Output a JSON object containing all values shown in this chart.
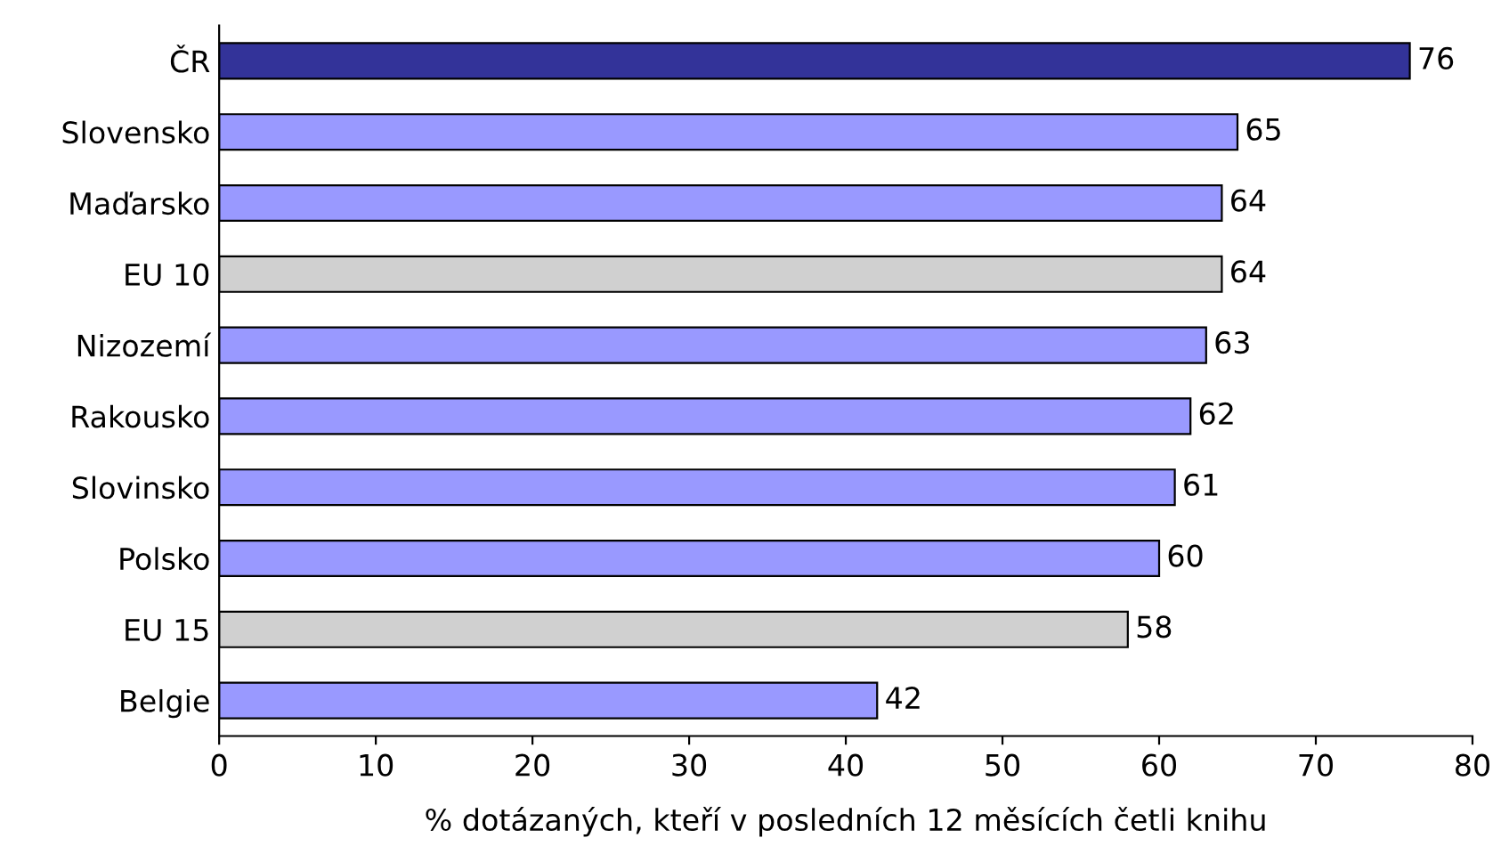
{
  "chart_data": {
    "type": "bar",
    "orientation": "horizontal",
    "xlabel": "% dotázaných, kteří v posledních 12 měsících četli knihu",
    "categories": [
      "ČR",
      "Slovensko",
      "Maďarsko",
      "EU 10",
      "Nizozemí",
      "Rakousko",
      "Slovinsko",
      "Polsko",
      "EU 15",
      "Belgie"
    ],
    "values": [
      76,
      65,
      64,
      64,
      63,
      62,
      61,
      60,
      58,
      42
    ],
    "colors": [
      "#333399",
      "#9999ff",
      "#9999ff",
      "#d0d0d0",
      "#9999ff",
      "#9999ff",
      "#9999ff",
      "#9999ff",
      "#d0d0d0",
      "#9999ff"
    ],
    "xlim": [
      0,
      80
    ],
    "xticks": [
      0,
      10,
      20,
      30,
      40,
      50,
      60,
      70,
      80
    ],
    "data_labels": true,
    "grid": false,
    "legend": false
  }
}
